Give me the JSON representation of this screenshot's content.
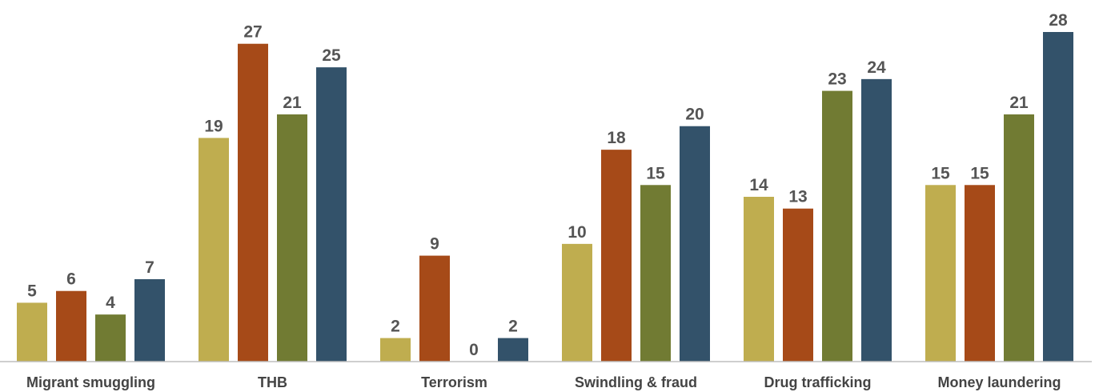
{
  "chart_data": {
    "type": "bar",
    "categories": [
      "Migrant smuggling",
      "THB",
      "Terrorism",
      "Swindling & fraud",
      "Drug trafficking",
      "Money laundering"
    ],
    "series": [
      {
        "values": [
          5,
          19,
          2,
          10,
          14,
          15
        ],
        "color": "#BFAD4F"
      },
      {
        "values": [
          6,
          27,
          9,
          18,
          13,
          15
        ],
        "color": "#A64A18"
      },
      {
        "values": [
          4,
          21,
          0,
          15,
          23,
          21
        ],
        "color": "#717B33"
      },
      {
        "values": [
          7,
          25,
          2,
          20,
          24,
          28
        ],
        "color": "#33526A"
      }
    ],
    "ylim": [
      0,
      28
    ],
    "grid": false,
    "legend": "none",
    "axis_color": "#BFBFBF"
  }
}
